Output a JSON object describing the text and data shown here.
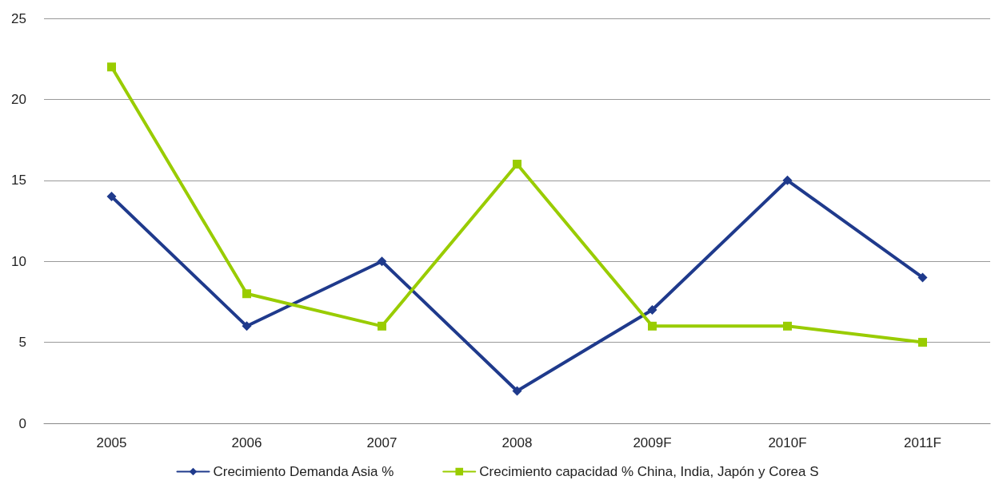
{
  "chart_data": {
    "type": "line",
    "categories": [
      "2005",
      "2006",
      "2007",
      "2008",
      "2009F",
      "2010F",
      "2011F"
    ],
    "series": [
      {
        "name": "Crecimiento Demanda Asia %",
        "color": "#1f3a8c",
        "marker": "diamond",
        "values": [
          14,
          6,
          10,
          2,
          7,
          15,
          9
        ]
      },
      {
        "name": "Crecimiento capacidad % China, India, Japón y Corea S",
        "color": "#99cc00",
        "marker": "square",
        "values": [
          22,
          8,
          6,
          16,
          6,
          6,
          5
        ]
      }
    ],
    "ylim": [
      0,
      25
    ],
    "yticks": [
      0,
      5,
      10,
      15,
      20,
      25
    ],
    "grid": "y",
    "legend": "bottom",
    "line_style": "solid"
  }
}
